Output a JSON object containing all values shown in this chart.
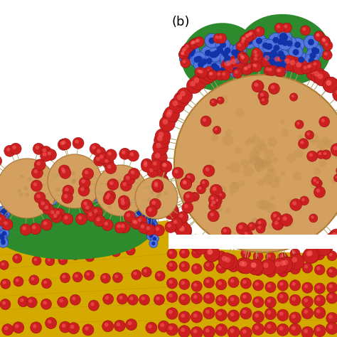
{
  "figure_label": "(b)",
  "label_fontsize": 13,
  "bg_color": "#ffffff",
  "left_panel": {
    "membrane_color": "#d4aa00",
    "membrane_stripe_color": "#c09800",
    "cell_color": "#2d8a2d",
    "virus_body_color": "#d4a060",
    "spike_color": "#cc2020",
    "spike_stem_color": "#aaa060",
    "receptor_outer": "#5577dd",
    "receptor_inner": "#99bbff",
    "receptor_edge": "#2244aa"
  },
  "right_top_panel": {
    "virus_body_color": "#d4a060",
    "spike_color": "#cc2020",
    "spike_stem_color": "#aaa060",
    "cell_color": "#2d8a2d",
    "receptor_outer": "#5577dd",
    "receptor_inner": "#99bbff",
    "receptor_edge": "#2244aa"
  },
  "right_bottom_panel": {
    "membrane_color": "#d4aa00",
    "spike_color": "#cc2020",
    "spike_stem_color": "#aaa060"
  }
}
